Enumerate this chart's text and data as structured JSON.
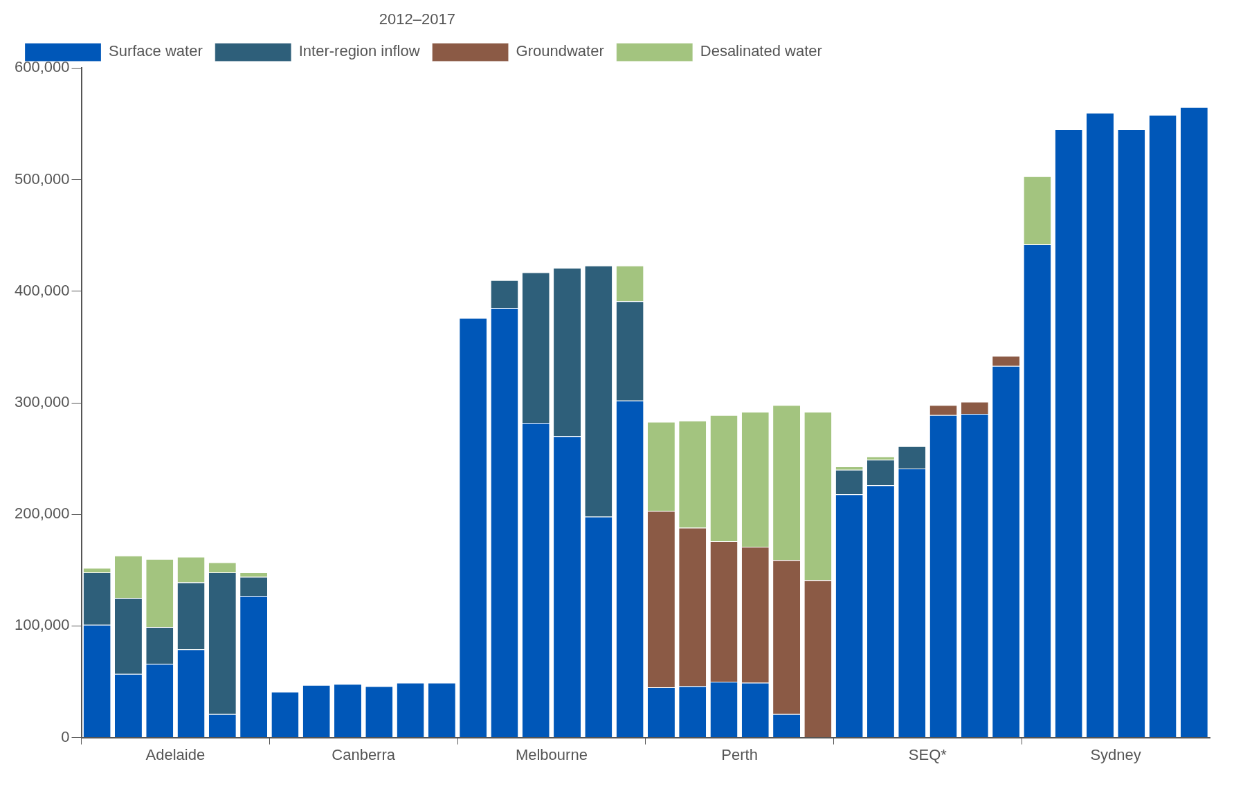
{
  "chart_data": {
    "type": "bar",
    "stacked": true,
    "legend": "top left",
    "legend_title": "2012–2017",
    "grid": false,
    "categories": [
      null,
      null,
      "Adelaide",
      null,
      null,
      null,
      null,
      null,
      "Canberra",
      null,
      null,
      null,
      null,
      null,
      "Melbourne",
      null,
      null,
      null,
      null,
      null,
      "Perth",
      null,
      null,
      null,
      null,
      null,
      "SEQ*",
      null,
      null,
      null,
      null,
      null,
      "Sydney",
      null,
      null,
      null
    ],
    "ylim": [
      0,
      600000
    ],
    "yticks": [
      0,
      {
        "value": 100000,
        "label": "100,000"
      },
      {
        "value": 200000,
        "label": "200,000"
      },
      {
        "value": 300000,
        "label": "300,000"
      },
      {
        "value": 400000,
        "label": "400,000"
      },
      {
        "value": 500000,
        "label": "500,000"
      },
      {
        "value": 600000,
        "label": "600,000"
      }
    ],
    "series": [
      {
        "name": "Surface water",
        "color": "#0057b8",
        "values": [
          101000,
          57000,
          66000,
          79000,
          21000,
          127000,
          41000,
          47000,
          48000,
          46000,
          49000,
          49000,
          376000,
          385000,
          282000,
          270000,
          198000,
          302000,
          45000,
          46000,
          50000,
          49000,
          21000,
          0,
          218000,
          226000,
          241000,
          289000,
          290000,
          333000,
          442000,
          545000,
          560000,
          545000,
          558000,
          565000
        ]
      },
      {
        "name": "Inter-region inflow",
        "color": "#2e5f7a",
        "values": [
          47000,
          68000,
          33000,
          60000,
          127000,
          17000,
          0,
          0,
          0,
          0,
          0,
          0,
          0,
          25000,
          135000,
          151000,
          225000,
          89000,
          0,
          0,
          0,
          0,
          0,
          0,
          22000,
          23000,
          20000,
          0,
          0,
          0,
          0,
          0,
          0,
          0,
          0,
          0
        ]
      },
      {
        "name": "Groundwater",
        "color": "#8b5a45",
        "values": [
          0,
          0,
          0,
          0,
          0,
          0,
          0,
          0,
          0,
          0,
          0,
          0,
          0,
          0,
          0,
          0,
          0,
          0,
          158000,
          142000,
          126000,
          122000,
          138000,
          141000,
          0,
          0,
          0,
          9000,
          11000,
          9000,
          0,
          0,
          0,
          0,
          0,
          0
        ]
      },
      {
        "name": "Desalinated water",
        "color": "#a3c47f",
        "values": [
          4000,
          38000,
          61000,
          23000,
          9000,
          4000,
          0,
          0,
          0,
          0,
          0,
          0,
          0,
          0,
          0,
          0,
          0,
          32000,
          80000,
          96000,
          113000,
          121000,
          139000,
          151000,
          3000,
          3000,
          0,
          0,
          0,
          0,
          61000,
          0,
          0,
          0,
          0,
          0
        ]
      }
    ]
  }
}
